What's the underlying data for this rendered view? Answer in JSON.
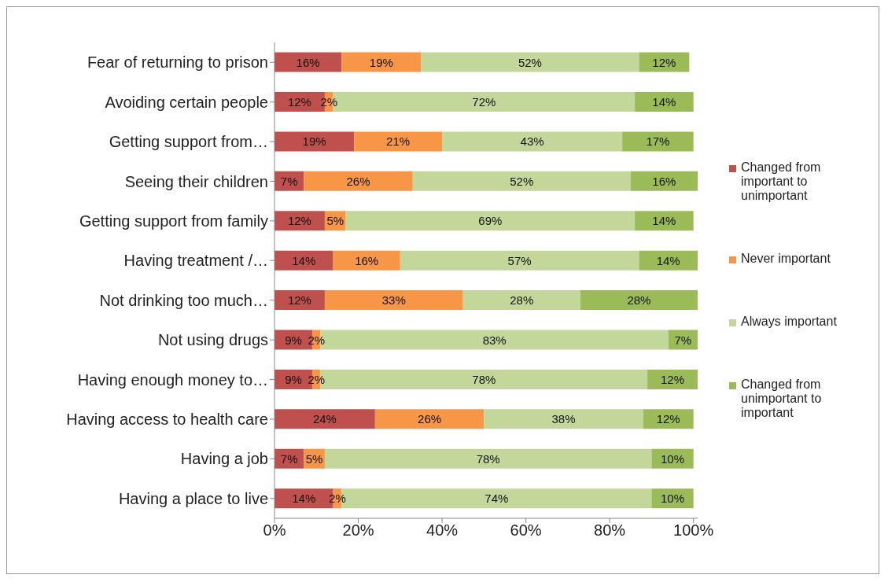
{
  "chart_data": {
    "type": "bar",
    "orientation": "horizontal",
    "stacked": true,
    "categories": [
      "Fear of returning to prison",
      "Avoiding certain people",
      "Getting support from…",
      "Seeing their children",
      "Getting support from family",
      "Having treatment /…",
      "Not drinking too much…",
      "Not using drugs",
      "Having enough money to…",
      "Having access to health care",
      "Having a job",
      "Having a place to live"
    ],
    "series": [
      {
        "name": "Changed from important to unimportant",
        "color": "#c0504d",
        "values": [
          16,
          12,
          19,
          7,
          12,
          14,
          12,
          9,
          9,
          24,
          7,
          14
        ],
        "value_labels": [
          "16%",
          "12%",
          "19%",
          "7%",
          "12%",
          "14%",
          "12%",
          "9%",
          "9%",
          "24%",
          "7%",
          "14%"
        ]
      },
      {
        "name": "Never important",
        "color": "#f79646",
        "values": [
          19,
          2,
          21,
          26,
          5,
          16,
          33,
          2,
          2,
          26,
          5,
          2
        ],
        "value_labels": [
          "19%",
          "2%",
          "21%",
          "26%",
          "5%",
          "16%",
          "33%",
          "2%",
          "2%",
          "26%",
          "5%",
          "2%"
        ]
      },
      {
        "name": "Always important",
        "color": "#c4d79b",
        "values": [
          52,
          72,
          43,
          52,
          69,
          57,
          28,
          83,
          78,
          38,
          78,
          74
        ],
        "value_labels": [
          "52%",
          "72%",
          "43%",
          "52%",
          "69%",
          "57%",
          "28%",
          "83%",
          "78%",
          "38%",
          "78%",
          "74%"
        ]
      },
      {
        "name": "Changed from unimportant to important",
        "color": "#9bbb59",
        "values": [
          12,
          14,
          17,
          16,
          14,
          14,
          28,
          7,
          12,
          12,
          10,
          10
        ],
        "value_labels": [
          "12%",
          "14%",
          "17%",
          "16%",
          "14%",
          "14%",
          "28%",
          "7%",
          "12%",
          "12%",
          "10%",
          "10%"
        ]
      }
    ],
    "xlim": [
      0,
      101
    ],
    "xticks": [
      {
        "value": 0,
        "label": "0%"
      },
      {
        "value": 20,
        "label": "20%"
      },
      {
        "value": 40,
        "label": "40%"
      },
      {
        "value": 60,
        "label": "60%"
      },
      {
        "value": 80,
        "label": "80%"
      },
      {
        "value": 100,
        "label": "100%"
      }
    ],
    "legend": "right",
    "grid": false
  }
}
